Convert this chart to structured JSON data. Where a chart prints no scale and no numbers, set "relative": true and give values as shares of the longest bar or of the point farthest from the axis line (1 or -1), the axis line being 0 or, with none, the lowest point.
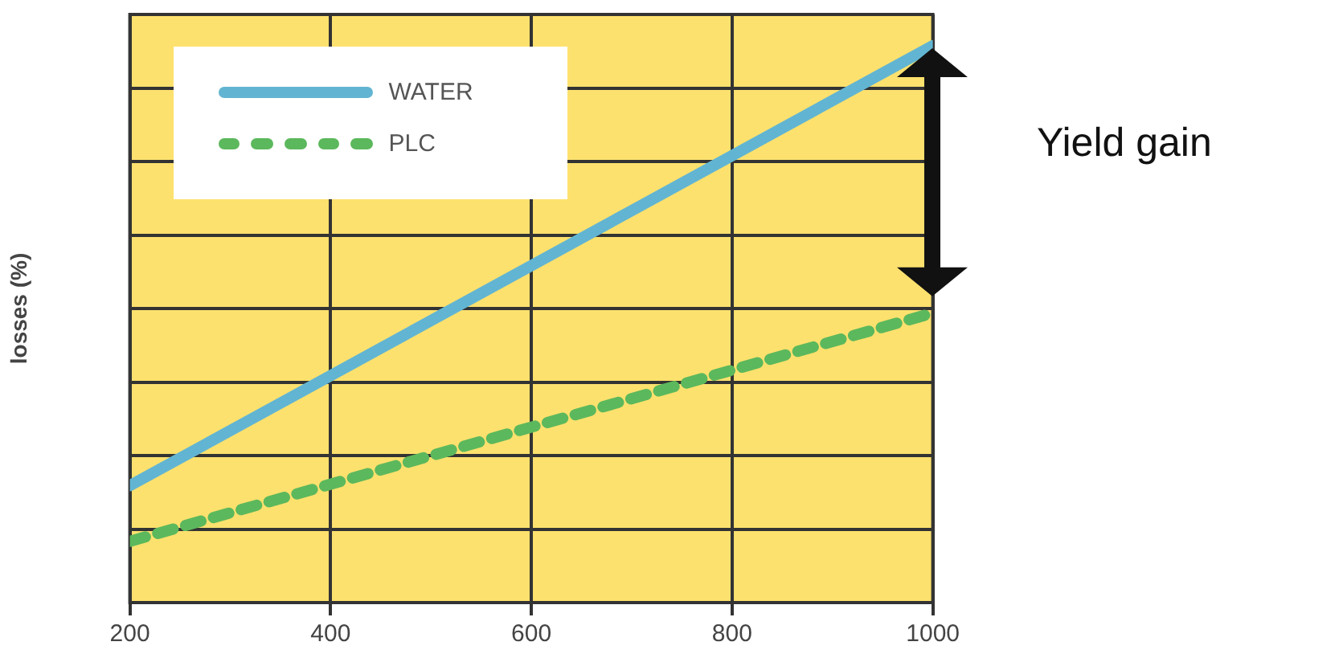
{
  "chart_data": {
    "type": "line",
    "relative": true,
    "ylabel": "losses (%)",
    "x": [
      200,
      1000
    ],
    "xlim": [
      200,
      1000
    ],
    "xticks": [
      200,
      400,
      600,
      800,
      1000
    ],
    "series": [
      {
        "name": "WATER",
        "color": "#62b5d2",
        "values": [
          0.21,
          1
        ],
        "line_style": "solid"
      },
      {
        "name": "PLC",
        "color": "#5cb85c",
        "values": [
          0.11,
          0.52
        ],
        "line_style": "dashed"
      }
    ],
    "annotations": [
      "Yield gain"
    ],
    "grid": true,
    "legend": "top left",
    "marker": "none"
  }
}
